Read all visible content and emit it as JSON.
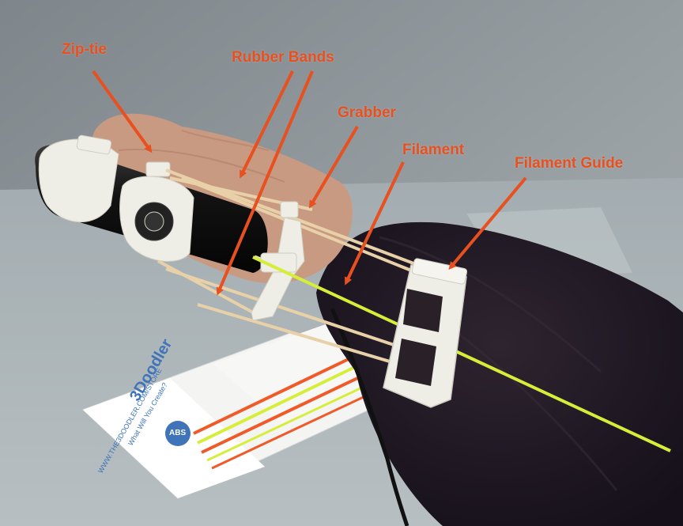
{
  "annotations": {
    "color": "#e8501f",
    "zip_tie": "Zip-tie",
    "rubber_bands": "Rubber Bands",
    "grabber": "Grabber",
    "filament": "Filament",
    "filament_guide": "Filament Guide"
  },
  "package": {
    "brand": "3Doodler",
    "tagline": "What Will You Create?",
    "url": "WWW.THE3DOODLER.COM/STORE",
    "material_badge": "ABS",
    "badge_color": "#3f74b8"
  },
  "colors": {
    "background_wall": "#8f969b",
    "table": "#a9b2b6",
    "sleeve": "#231a22",
    "pen_body": "#151515",
    "printed_parts": "#efeee6",
    "filament_green": "#d6ee3a",
    "filament_orange": "#f05a28",
    "rubber_band": "#e8d1a8",
    "skin": "#c99a82"
  }
}
